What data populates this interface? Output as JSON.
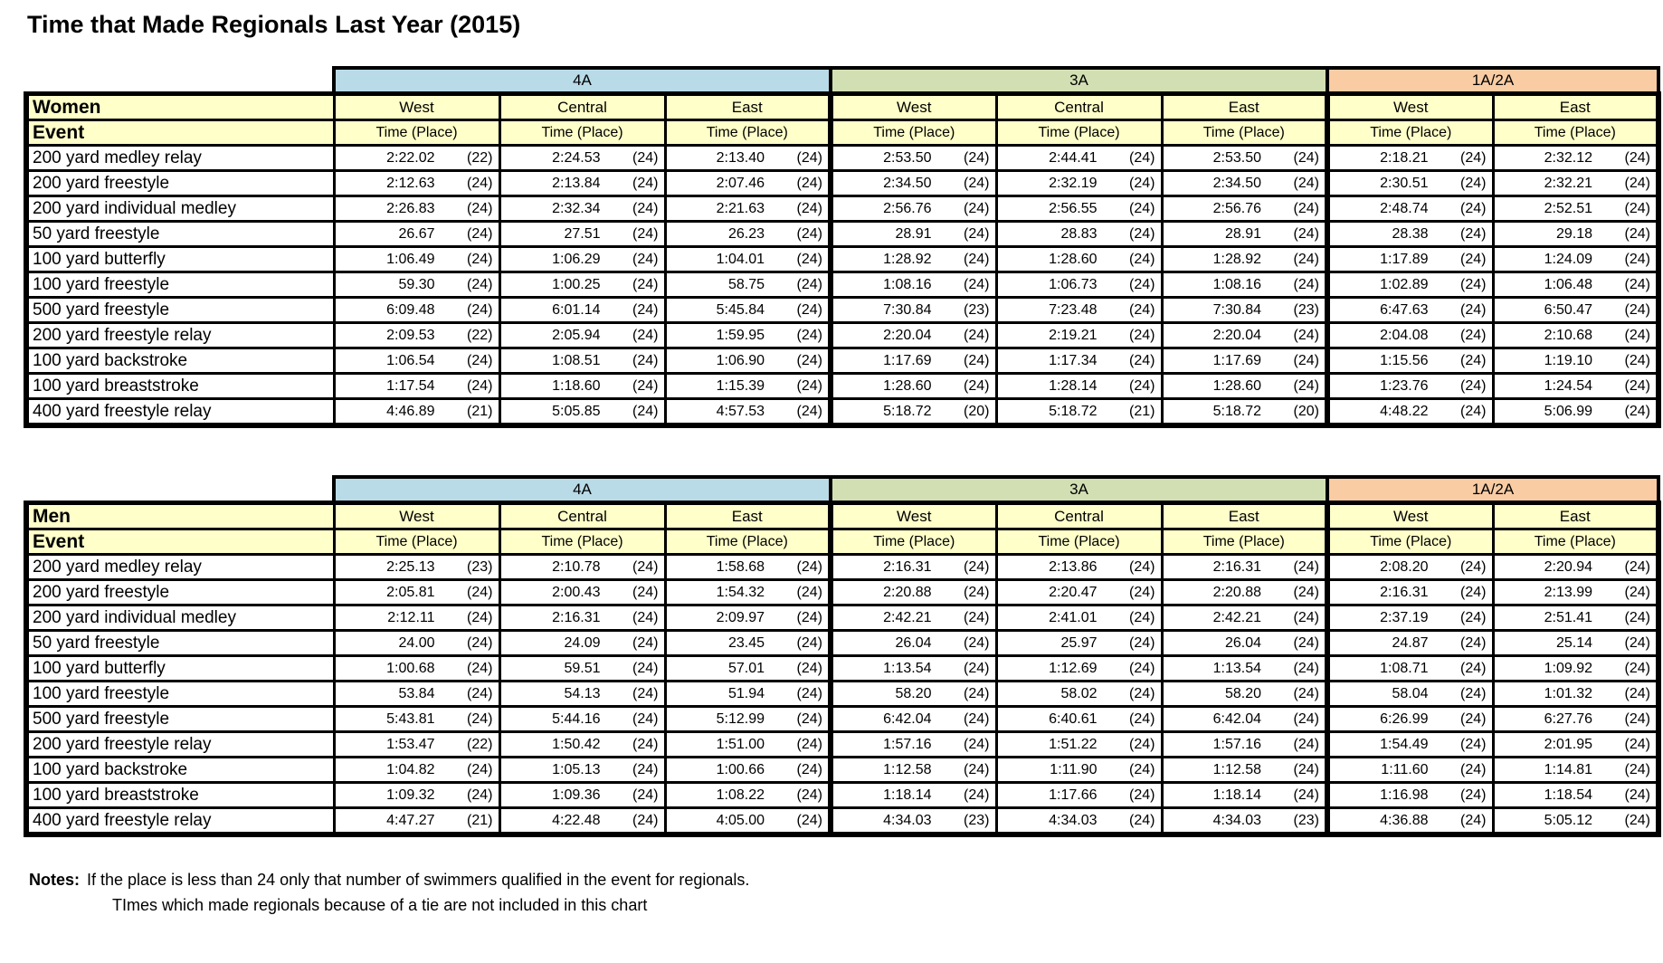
{
  "title": "Time that Made Regionals Last Year (2015)",
  "colors": {
    "division_4a": "#B9DAE7",
    "division_3a": "#D2DFB3",
    "division_1a2a": "#F9CCA4",
    "header_yellow": "#FFFFC9",
    "border": "#000000"
  },
  "groups": [
    {
      "label": "4A",
      "color": "#B9DAE7",
      "span": 3
    },
    {
      "label": "3A",
      "color": "#D2DFB3",
      "span": 3
    },
    {
      "label": "1A/2A",
      "color": "#F9CCA4",
      "span": 2
    }
  ],
  "subheaders": [
    "West",
    "Central",
    "East",
    "West",
    "Central",
    "East",
    "West",
    "East"
  ],
  "time_place_label": "Time (Place)",
  "event_label": "Event",
  "tables": [
    {
      "section_label": "Women",
      "rows": [
        {
          "event": "200 yard medley relay",
          "cells": [
            [
              "2:22.02",
              "(22)"
            ],
            [
              "2:24.53",
              "(24)"
            ],
            [
              "2:13.40",
              "(24)"
            ],
            [
              "2:53.50",
              "(24)"
            ],
            [
              "2:44.41",
              "(24)"
            ],
            [
              "2:53.50",
              "(24)"
            ],
            [
              "2:18.21",
              "(24)"
            ],
            [
              "2:32.12",
              "(24)"
            ]
          ]
        },
        {
          "event": "200 yard freestyle",
          "cells": [
            [
              "2:12.63",
              "(24)"
            ],
            [
              "2:13.84",
              "(24)"
            ],
            [
              "2:07.46",
              "(24)"
            ],
            [
              "2:34.50",
              "(24)"
            ],
            [
              "2:32.19",
              "(24)"
            ],
            [
              "2:34.50",
              "(24)"
            ],
            [
              "2:30.51",
              "(24)"
            ],
            [
              "2:32.21",
              "(24)"
            ]
          ]
        },
        {
          "event": "200 yard individual medley",
          "cells": [
            [
              "2:26.83",
              "(24)"
            ],
            [
              "2:32.34",
              "(24)"
            ],
            [
              "2:21.63",
              "(24)"
            ],
            [
              "2:56.76",
              "(24)"
            ],
            [
              "2:56.55",
              "(24)"
            ],
            [
              "2:56.76",
              "(24)"
            ],
            [
              "2:48.74",
              "(24)"
            ],
            [
              "2:52.51",
              "(24)"
            ]
          ]
        },
        {
          "event": "50 yard freestyle",
          "cells": [
            [
              "26.67",
              "(24)"
            ],
            [
              "27.51",
              "(24)"
            ],
            [
              "26.23",
              "(24)"
            ],
            [
              "28.91",
              "(24)"
            ],
            [
              "28.83",
              "(24)"
            ],
            [
              "28.91",
              "(24)"
            ],
            [
              "28.38",
              "(24)"
            ],
            [
              "29.18",
              "(24)"
            ]
          ]
        },
        {
          "event": "100 yard butterfly",
          "cells": [
            [
              "1:06.49",
              "(24)"
            ],
            [
              "1:06.29",
              "(24)"
            ],
            [
              "1:04.01",
              "(24)"
            ],
            [
              "1:28.92",
              "(24)"
            ],
            [
              "1:28.60",
              "(24)"
            ],
            [
              "1:28.92",
              "(24)"
            ],
            [
              "1:17.89",
              "(24)"
            ],
            [
              "1:24.09",
              "(24)"
            ]
          ]
        },
        {
          "event": "100 yard freestyle",
          "cells": [
            [
              "59.30",
              "(24)"
            ],
            [
              "1:00.25",
              "(24)"
            ],
            [
              "58.75",
              "(24)"
            ],
            [
              "1:08.16",
              "(24)"
            ],
            [
              "1:06.73",
              "(24)"
            ],
            [
              "1:08.16",
              "(24)"
            ],
            [
              "1:02.89",
              "(24)"
            ],
            [
              "1:06.48",
              "(24)"
            ]
          ]
        },
        {
          "event": "500 yard freestyle",
          "cells": [
            [
              "6:09.48",
              "(24)"
            ],
            [
              "6:01.14",
              "(24)"
            ],
            [
              "5:45.84",
              "(24)"
            ],
            [
              "7:30.84",
              "(23)"
            ],
            [
              "7:23.48",
              "(24)"
            ],
            [
              "7:30.84",
              "(23)"
            ],
            [
              "6:47.63",
              "(24)"
            ],
            [
              "6:50.47",
              "(24)"
            ]
          ]
        },
        {
          "event": "200 yard freestyle relay",
          "cells": [
            [
              "2:09.53",
              "(22)"
            ],
            [
              "2:05.94",
              "(24)"
            ],
            [
              "1:59.95",
              "(24)"
            ],
            [
              "2:20.04",
              "(24)"
            ],
            [
              "2:19.21",
              "(24)"
            ],
            [
              "2:20.04",
              "(24)"
            ],
            [
              "2:04.08",
              "(24)"
            ],
            [
              "2:10.68",
              "(24)"
            ]
          ]
        },
        {
          "event": "100 yard backstroke",
          "cells": [
            [
              "1:06.54",
              "(24)"
            ],
            [
              "1:08.51",
              "(24)"
            ],
            [
              "1:06.90",
              "(24)"
            ],
            [
              "1:17.69",
              "(24)"
            ],
            [
              "1:17.34",
              "(24)"
            ],
            [
              "1:17.69",
              "(24)"
            ],
            [
              "1:15.56",
              "(24)"
            ],
            [
              "1:19.10",
              "(24)"
            ]
          ]
        },
        {
          "event": "100 yard breaststroke",
          "cells": [
            [
              "1:17.54",
              "(24)"
            ],
            [
              "1:18.60",
              "(24)"
            ],
            [
              "1:15.39",
              "(24)"
            ],
            [
              "1:28.60",
              "(24)"
            ],
            [
              "1:28.14",
              "(24)"
            ],
            [
              "1:28.60",
              "(24)"
            ],
            [
              "1:23.76",
              "(24)"
            ],
            [
              "1:24.54",
              "(24)"
            ]
          ]
        },
        {
          "event": "400 yard freestyle relay",
          "cells": [
            [
              "4:46.89",
              "(21)"
            ],
            [
              "5:05.85",
              "(24)"
            ],
            [
              "4:57.53",
              "(24)"
            ],
            [
              "5:18.72",
              "(20)"
            ],
            [
              "5:18.72",
              "(21)"
            ],
            [
              "5:18.72",
              "(20)"
            ],
            [
              "4:48.22",
              "(24)"
            ],
            [
              "5:06.99",
              "(24)"
            ]
          ]
        }
      ]
    },
    {
      "section_label": "Men",
      "rows": [
        {
          "event": "200 yard medley relay",
          "cells": [
            [
              "2:25.13",
              "(23)"
            ],
            [
              "2:10.78",
              "(24)"
            ],
            [
              "1:58.68",
              "(24)"
            ],
            [
              "2:16.31",
              "(24)"
            ],
            [
              "2:13.86",
              "(24)"
            ],
            [
              "2:16.31",
              "(24)"
            ],
            [
              "2:08.20",
              "(24)"
            ],
            [
              "2:20.94",
              "(24)"
            ]
          ]
        },
        {
          "event": "200 yard freestyle",
          "cells": [
            [
              "2:05.81",
              "(24)"
            ],
            [
              "2:00.43",
              "(24)"
            ],
            [
              "1:54.32",
              "(24)"
            ],
            [
              "2:20.88",
              "(24)"
            ],
            [
              "2:20.47",
              "(24)"
            ],
            [
              "2:20.88",
              "(24)"
            ],
            [
              "2:16.31",
              "(24)"
            ],
            [
              "2:13.99",
              "(24)"
            ]
          ]
        },
        {
          "event": "200 yard individual medley",
          "cells": [
            [
              "2:12.11",
              "(24)"
            ],
            [
              "2:16.31",
              "(24)"
            ],
            [
              "2:09.97",
              "(24)"
            ],
            [
              "2:42.21",
              "(24)"
            ],
            [
              "2:41.01",
              "(24)"
            ],
            [
              "2:42.21",
              "(24)"
            ],
            [
              "2:37.19",
              "(24)"
            ],
            [
              "2:51.41",
              "(24)"
            ]
          ]
        },
        {
          "event": "50 yard freestyle",
          "cells": [
            [
              "24.00",
              "(24)"
            ],
            [
              "24.09",
              "(24)"
            ],
            [
              "23.45",
              "(24)"
            ],
            [
              "26.04",
              "(24)"
            ],
            [
              "25.97",
              "(24)"
            ],
            [
              "26.04",
              "(24)"
            ],
            [
              "24.87",
              "(24)"
            ],
            [
              "25.14",
              "(24)"
            ]
          ]
        },
        {
          "event": "100 yard butterfly",
          "cells": [
            [
              "1:00.68",
              "(24)"
            ],
            [
              "59.51",
              "(24)"
            ],
            [
              "57.01",
              "(24)"
            ],
            [
              "1:13.54",
              "(24)"
            ],
            [
              "1:12.69",
              "(24)"
            ],
            [
              "1:13.54",
              "(24)"
            ],
            [
              "1:08.71",
              "(24)"
            ],
            [
              "1:09.92",
              "(24)"
            ]
          ]
        },
        {
          "event": "100 yard freestyle",
          "cells": [
            [
              "53.84",
              "(24)"
            ],
            [
              "54.13",
              "(24)"
            ],
            [
              "51.94",
              "(24)"
            ],
            [
              "58.20",
              "(24)"
            ],
            [
              "58.02",
              "(24)"
            ],
            [
              "58.20",
              "(24)"
            ],
            [
              "58.04",
              "(24)"
            ],
            [
              "1:01.32",
              "(24)"
            ]
          ]
        },
        {
          "event": "500 yard freestyle",
          "cells": [
            [
              "5:43.81",
              "(24)"
            ],
            [
              "5:44.16",
              "(24)"
            ],
            [
              "5:12.99",
              "(24)"
            ],
            [
              "6:42.04",
              "(24)"
            ],
            [
              "6:40.61",
              "(24)"
            ],
            [
              "6:42.04",
              "(24)"
            ],
            [
              "6:26.99",
              "(24)"
            ],
            [
              "6:27.76",
              "(24)"
            ]
          ]
        },
        {
          "event": "200 yard freestyle relay",
          "cells": [
            [
              "1:53.47",
              "(22)"
            ],
            [
              "1:50.42",
              "(24)"
            ],
            [
              "1:51.00",
              "(24)"
            ],
            [
              "1:57.16",
              "(24)"
            ],
            [
              "1:51.22",
              "(24)"
            ],
            [
              "1:57.16",
              "(24)"
            ],
            [
              "1:54.49",
              "(24)"
            ],
            [
              "2:01.95",
              "(24)"
            ]
          ]
        },
        {
          "event": "100 yard backstroke",
          "cells": [
            [
              "1:04.82",
              "(24)"
            ],
            [
              "1:05.13",
              "(24)"
            ],
            [
              "1:00.66",
              "(24)"
            ],
            [
              "1:12.58",
              "(24)"
            ],
            [
              "1:11.90",
              "(24)"
            ],
            [
              "1:12.58",
              "(24)"
            ],
            [
              "1:11.60",
              "(24)"
            ],
            [
              "1:14.81",
              "(24)"
            ]
          ]
        },
        {
          "event": "100 yard breaststroke",
          "cells": [
            [
              "1:09.32",
              "(24)"
            ],
            [
              "1:09.36",
              "(24)"
            ],
            [
              "1:08.22",
              "(24)"
            ],
            [
              "1:18.14",
              "(24)"
            ],
            [
              "1:17.66",
              "(24)"
            ],
            [
              "1:18.14",
              "(24)"
            ],
            [
              "1:16.98",
              "(24)"
            ],
            [
              "1:18.54",
              "(24)"
            ]
          ]
        },
        {
          "event": "400 yard freestyle relay",
          "cells": [
            [
              "4:47.27",
              "(21)"
            ],
            [
              "4:22.48",
              "(24)"
            ],
            [
              "4:05.00",
              "(24)"
            ],
            [
              "4:34.03",
              "(23)"
            ],
            [
              "4:34.03",
              "(24)"
            ],
            [
              "4:34.03",
              "(23)"
            ],
            [
              "4:36.88",
              "(24)"
            ],
            [
              "5:05.12",
              "(24)"
            ]
          ]
        }
      ]
    }
  ],
  "notes": {
    "label": "Notes:",
    "line1": "If the place is less than 24 only that number of swimmers qualified in the event for regionals.",
    "line2": "TImes which made regionals because of a tie are not included in this chart"
  }
}
